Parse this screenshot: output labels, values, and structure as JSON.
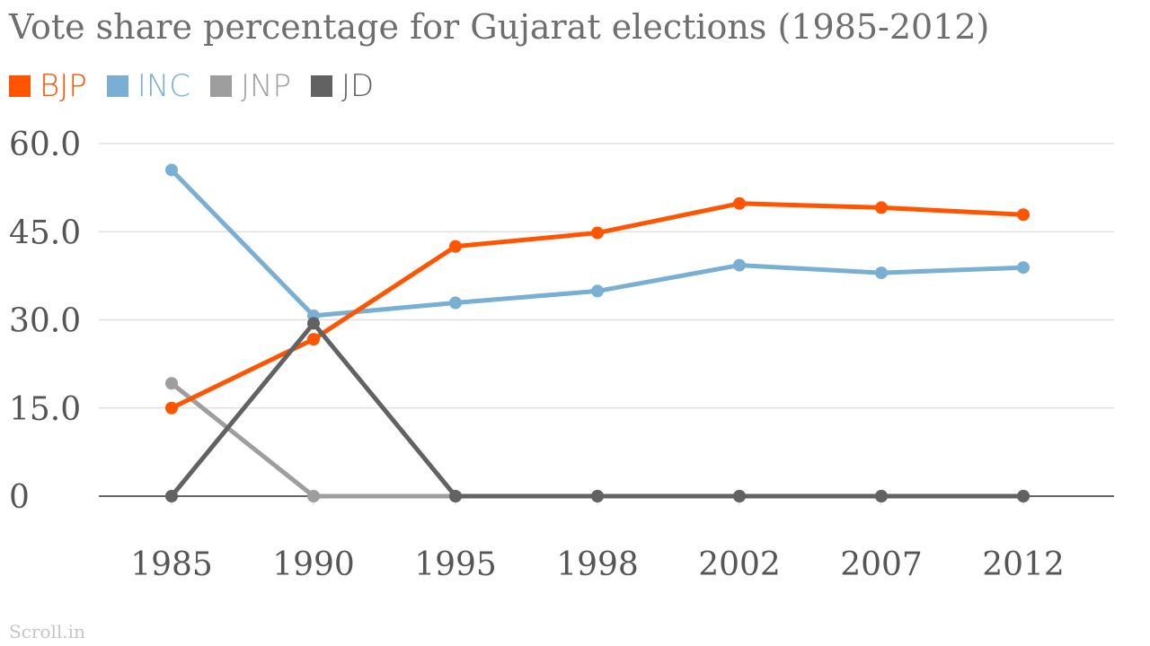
{
  "chart_data": {
    "type": "line",
    "title": "Vote share percentage for Gujarat elections (1985-2012)",
    "xlabel": "",
    "ylabel": "",
    "categories": [
      "1985",
      "1990",
      "1995",
      "1998",
      "2002",
      "2007",
      "2012"
    ],
    "y_ticks": [
      "0",
      "15.0",
      "30.0",
      "45.0",
      "60.0"
    ],
    "y_tick_values": [
      0,
      15,
      30,
      45,
      60
    ],
    "ylim": [
      0,
      60
    ],
    "grid": true,
    "legend_position": "top-left",
    "series": [
      {
        "name": "BJP",
        "color": "#ff5500",
        "values": [
          15.0,
          26.7,
          42.5,
          44.8,
          49.8,
          49.1,
          47.9
        ]
      },
      {
        "name": "INC",
        "color": "#78afd3",
        "values": [
          55.5,
          30.7,
          32.9,
          34.9,
          39.3,
          38.0,
          38.9
        ]
      },
      {
        "name": "JNP",
        "color": "#9e9e9e",
        "values": [
          19.2,
          0,
          0,
          0,
          0,
          0,
          0
        ]
      },
      {
        "name": "JD",
        "color": "#626262",
        "values": [
          0,
          29.4,
          0,
          0,
          0,
          0,
          0
        ]
      }
    ]
  },
  "source": "Scroll.in"
}
